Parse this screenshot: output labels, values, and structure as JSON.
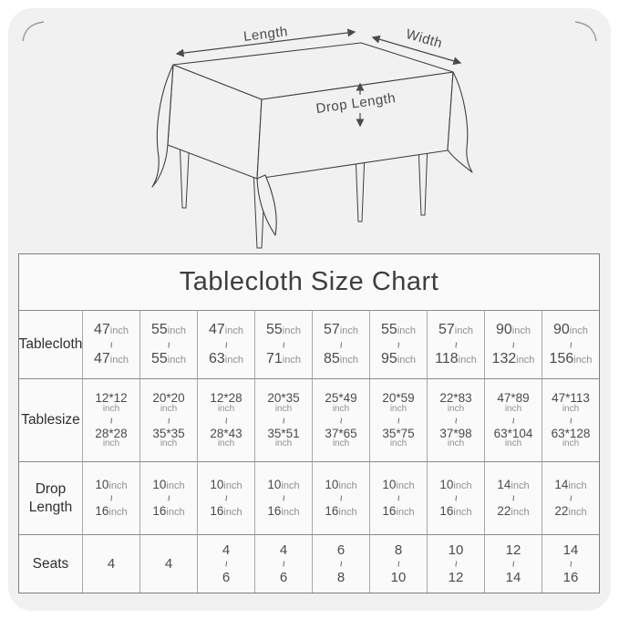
{
  "page": {
    "background": "#ffffff",
    "card_background": "#f1f1f2"
  },
  "diagram": {
    "length_label": "Length",
    "width_label": "Width",
    "drop_length_label": "Drop Length"
  },
  "chart_data": {
    "type": "table",
    "title": "Tablecloth Size Chart",
    "unit": "inch",
    "range_separator": "~",
    "row_headers": [
      "Tablecloth",
      "Tablesize",
      "Drop Length",
      "Seats"
    ],
    "rows": [
      {
        "label": "Tablecloth",
        "unit_style": "inline",
        "cells": [
          {
            "min": "47",
            "max": "47"
          },
          {
            "min": "55",
            "max": "55"
          },
          {
            "min": "47",
            "max": "63"
          },
          {
            "min": "55",
            "max": "71"
          },
          {
            "min": "57",
            "max": "85"
          },
          {
            "min": "55",
            "max": "95"
          },
          {
            "min": "57",
            "max": "118"
          },
          {
            "min": "90",
            "max": "132"
          },
          {
            "min": "90",
            "max": "156"
          }
        ]
      },
      {
        "label": "Tablesize",
        "unit_style": "stacked",
        "cells": [
          {
            "min": "12*12",
            "max": "28*28"
          },
          {
            "min": "20*20",
            "max": "35*35"
          },
          {
            "min": "12*28",
            "max": "28*43"
          },
          {
            "min": "20*35",
            "max": "35*51"
          },
          {
            "min": "25*49",
            "max": "37*65"
          },
          {
            "min": "20*59",
            "max": "35*75"
          },
          {
            "min": "22*83",
            "max": "37*98"
          },
          {
            "min": "47*89",
            "max": "63*104"
          },
          {
            "min": "47*113",
            "max": "63*128"
          }
        ]
      },
      {
        "label": "Drop Length",
        "unit_style": "inline",
        "cells": [
          {
            "min": "10",
            "max": "16"
          },
          {
            "min": "10",
            "max": "16"
          },
          {
            "min": "10",
            "max": "16"
          },
          {
            "min": "10",
            "max": "16"
          },
          {
            "min": "10",
            "max": "16"
          },
          {
            "min": "10",
            "max": "16"
          },
          {
            "min": "10",
            "max": "16"
          },
          {
            "min": "14",
            "max": "22"
          },
          {
            "min": "14",
            "max": "22"
          }
        ]
      },
      {
        "label": "Seats",
        "unit_style": "none",
        "cells": [
          {
            "value": "4"
          },
          {
            "value": "4"
          },
          {
            "min": "4",
            "max": "6"
          },
          {
            "min": "4",
            "max": "6"
          },
          {
            "min": "6",
            "max": "8"
          },
          {
            "min": "8",
            "max": "10"
          },
          {
            "min": "10",
            "max": "12"
          },
          {
            "min": "12",
            "max": "14"
          },
          {
            "min": "14",
            "max": "16"
          }
        ]
      }
    ]
  }
}
